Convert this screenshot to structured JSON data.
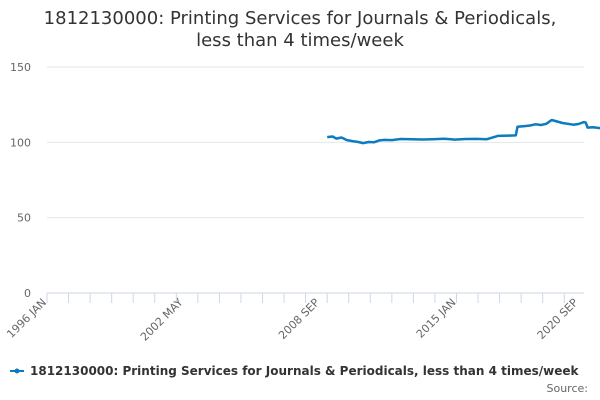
{
  "chart_data": {
    "type": "line",
    "title_lines": [
      "1812130000: Printing Services for Journals & Periodicals,",
      "less than 4 times/week"
    ],
    "y_ticks": [
      "0",
      "50",
      "100",
      "150"
    ],
    "ylim": [
      0,
      150
    ],
    "x_tick_labels": [
      "1996 JAN",
      "2002 MAY",
      "2008 SEP",
      "2015 JAN",
      "2020 SEP"
    ],
    "x_range": [
      "1996-01",
      "2020-12"
    ],
    "grid": "horizontal",
    "legend_position": "bottom",
    "series": [
      {
        "name": "1812130000: Printing Services for Journals & Periodicals, less than 4 times/week",
        "color": "#0c7bbf",
        "points": [
          [
            "2009-01",
            103.5
          ],
          [
            "2009-04",
            103.9
          ],
          [
            "2009-06",
            102.5
          ],
          [
            "2009-09",
            103.2
          ],
          [
            "2009-12",
            101.5
          ],
          [
            "2010-03",
            100.8
          ],
          [
            "2010-06",
            100.3
          ],
          [
            "2010-09",
            99.5
          ],
          [
            "2010-12",
            100.2
          ],
          [
            "2011-03",
            100.0
          ],
          [
            "2011-06",
            101.3
          ],
          [
            "2011-09",
            101.6
          ],
          [
            "2012-01",
            101.5
          ],
          [
            "2012-06",
            102.2
          ],
          [
            "2012-12",
            102.0
          ],
          [
            "2013-06",
            101.9
          ],
          [
            "2013-12",
            102.1
          ],
          [
            "2014-06",
            102.4
          ],
          [
            "2014-10",
            102.0
          ],
          [
            "2014-12",
            101.8
          ],
          [
            "2015-06",
            102.2
          ],
          [
            "2015-12",
            102.3
          ],
          [
            "2016-06",
            102.1
          ],
          [
            "2016-12",
            104.3
          ],
          [
            "2017-06",
            104.5
          ],
          [
            "2017-10",
            104.6
          ],
          [
            "2017-11",
            110.3
          ],
          [
            "2018-03",
            110.8
          ],
          [
            "2018-06",
            111.2
          ],
          [
            "2018-09",
            112.0
          ],
          [
            "2018-12",
            111.5
          ],
          [
            "2019-03",
            112.3
          ],
          [
            "2019-06",
            114.8
          ],
          [
            "2019-09",
            113.8
          ],
          [
            "2019-12",
            112.8
          ],
          [
            "2020-03",
            112.3
          ],
          [
            "2020-06",
            111.7
          ],
          [
            "2020-09",
            112.2
          ],
          [
            "2020-12",
            113.5
          ],
          [
            "2021-01",
            113.0
          ],
          [
            "2021-02",
            109.8
          ],
          [
            "2021-05",
            110.0
          ],
          [
            "2021-09",
            109.4
          ],
          [
            "2021-12",
            109.8
          ],
          [
            "2022-03",
            110.0
          ]
        ]
      }
    ]
  },
  "credit": "Source:"
}
